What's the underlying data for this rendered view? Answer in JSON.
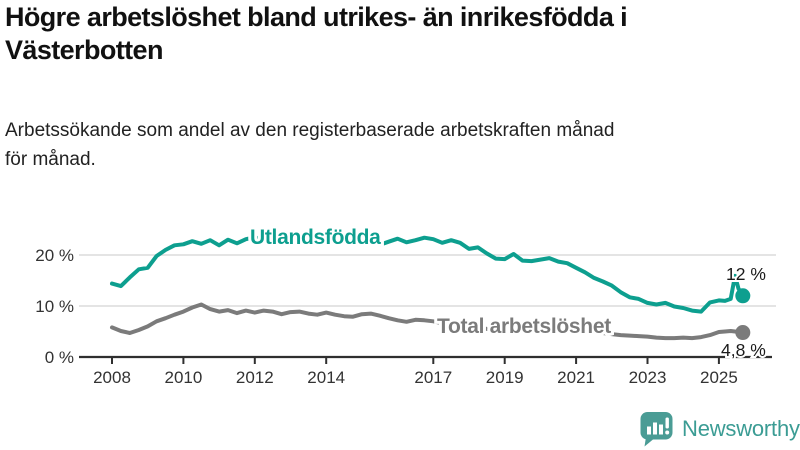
{
  "header": {
    "title": "Högre arbetslöshet bland utrikes- än inrikesfödda i Västerbotten",
    "subtitle": "Arbetssökande som andel av den registerbaserade arbetskraften månad för månad.",
    "subtitle_line1": "Arbetssökande som andel av den registerbaserade arbetskraften månad",
    "subtitle_line2": "för månad."
  },
  "footer": {
    "brand": "Newsworthy",
    "logo_icon": "bar-chart-speech-bubble-icon"
  },
  "colors": {
    "foreign_born_line": "#0d9f8f",
    "total_line": "#7b7b7b",
    "axis": "#2f2f2f",
    "grid": "#dcdcdc",
    "tick_text": "#333333",
    "annotation_text": "#1a1a1a",
    "brand_teal": "#3b9c94",
    "logo_fill": "#4a9c95"
  },
  "chart_data": {
    "type": "line",
    "title": "Högre arbetslöshet bland utrikes- än inrikesfödda i Västerbotten",
    "subtitle": "Arbetssökande som andel av den registerbaserade arbetskraften månad för månad.",
    "unit": "%",
    "grid": "horizontal",
    "legend_position": "inline-labels",
    "xlim": [
      2008,
      2025.75
    ],
    "ylim": [
      0,
      26
    ],
    "y_ticks": [
      {
        "value": 0,
        "label": "0 %"
      },
      {
        "value": 10,
        "label": "10 %"
      },
      {
        "value": 20,
        "label": "20 %"
      }
    ],
    "x_ticks": [
      {
        "value": 2008,
        "label": "2008"
      },
      {
        "value": 2010,
        "label": "2010"
      },
      {
        "value": 2012,
        "label": "2012"
      },
      {
        "value": 2014,
        "label": "2014"
      },
      {
        "value": 2017,
        "label": "2017"
      },
      {
        "value": 2019,
        "label": "2019"
      },
      {
        "value": 2021,
        "label": "2021"
      },
      {
        "value": 2023,
        "label": "2023"
      },
      {
        "value": 2025,
        "label": "2025"
      }
    ],
    "x": [
      2008,
      2008.25,
      2008.5,
      2008.75,
      2009,
      2009.25,
      2009.5,
      2009.75,
      2010,
      2010.25,
      2010.5,
      2010.75,
      2011,
      2011.25,
      2011.5,
      2011.75,
      2012,
      2012.25,
      2012.5,
      2012.75,
      2013,
      2013.25,
      2013.5,
      2013.75,
      2014,
      2014.25,
      2014.5,
      2014.75,
      2015,
      2015.25,
      2015.5,
      2015.75,
      2016,
      2016.25,
      2016.5,
      2016.75,
      2017,
      2017.25,
      2017.5,
      2017.75,
      2018,
      2018.25,
      2018.5,
      2018.75,
      2019,
      2019.25,
      2019.5,
      2019.75,
      2020,
      2020.25,
      2020.5,
      2020.75,
      2021,
      2021.25,
      2021.5,
      2021.75,
      2022,
      2022.25,
      2022.5,
      2022.75,
      2023,
      2023.25,
      2023.5,
      2023.75,
      2024,
      2024.25,
      2024.5,
      2024.75,
      2025,
      2025.17,
      2025.33,
      2025.45,
      2025.55,
      2025.67
    ],
    "series": [
      {
        "name": "Utlandsfödda",
        "color": "#0d9f8f",
        "end_value": 12,
        "end_label": "12 %",
        "values": [
          14.4,
          13.9,
          15.6,
          17.2,
          17.5,
          19.8,
          21.0,
          21.9,
          22.1,
          22.7,
          22.2,
          22.9,
          21.9,
          23.0,
          22.3,
          23.1,
          23.5,
          22.9,
          23.3,
          22.6,
          23.2,
          22.4,
          23.0,
          22.3,
          22.8,
          22.2,
          23.0,
          22.5,
          23.1,
          22.4,
          22.0,
          22.6,
          23.2,
          22.5,
          22.9,
          23.4,
          23.1,
          22.4,
          22.9,
          22.4,
          21.2,
          21.5,
          20.3,
          19.3,
          19.2,
          20.2,
          18.9,
          18.8,
          19.1,
          19.4,
          18.7,
          18.4,
          17.5,
          16.6,
          15.5,
          14.8,
          14.0,
          12.7,
          11.7,
          11.4,
          10.6,
          10.3,
          10.6,
          9.9,
          9.6,
          9.1,
          8.9,
          10.7,
          11.1,
          11.0,
          11.4,
          15.9,
          13.4,
          12.0
        ]
      },
      {
        "name": "Total arbetslöshet",
        "color": "#7b7b7b",
        "end_value": 4.8,
        "end_label": "4,8 %",
        "values": [
          5.8,
          5.1,
          4.7,
          5.3,
          6.0,
          7.0,
          7.6,
          8.3,
          8.9,
          9.7,
          10.3,
          9.4,
          8.9,
          9.2,
          8.6,
          9.1,
          8.7,
          9.1,
          8.9,
          8.4,
          8.8,
          8.9,
          8.5,
          8.3,
          8.7,
          8.3,
          8.0,
          7.9,
          8.4,
          8.5,
          8.1,
          7.6,
          7.2,
          6.9,
          7.3,
          7.2,
          7.0,
          6.6,
          6.3,
          6.1,
          5.9,
          5.7,
          5.5,
          5.4,
          5.5,
          5.4,
          5.3,
          5.5,
          5.8,
          6.4,
          6.2,
          5.9,
          5.6,
          5.3,
          5.0,
          4.7,
          4.5,
          4.3,
          4.2,
          4.1,
          4.0,
          3.8,
          3.7,
          3.7,
          3.8,
          3.7,
          3.9,
          4.3,
          4.9,
          5.0,
          5.1,
          5.0,
          4.9,
          4.8
        ]
      }
    ]
  }
}
